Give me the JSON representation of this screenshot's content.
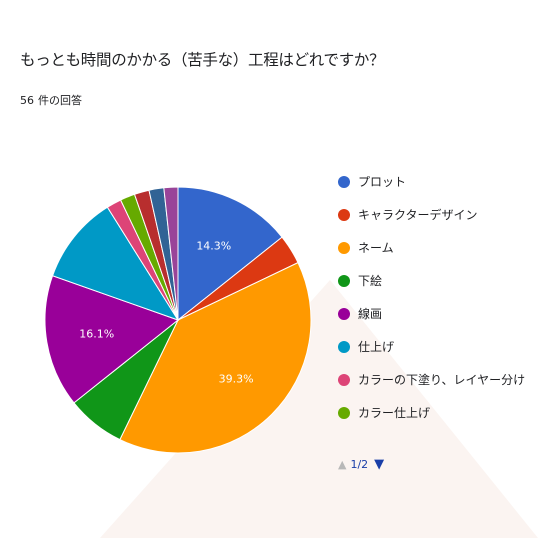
{
  "header": {
    "title": "もっとも時間のかかる（苦手な）工程はどれですか？",
    "response_count": "56",
    "response_suffix": "件の回答"
  },
  "legend_pager": {
    "page": "1/2",
    "prev_icon": "triangle-up-icon",
    "next_icon": "triangle-down-icon"
  },
  "chart_data": {
    "type": "pie",
    "title": "もっとも時間のかかる（苦手な）工程はどれですか？",
    "total": 56,
    "start_angle_deg": 90,
    "direction": "clockwise",
    "slices": [
      {
        "label": "プロット",
        "value": 14.3,
        "display_label": "14.3%",
        "color": "#3366cc"
      },
      {
        "label": "キャラクターデザイン",
        "value": 3.6,
        "display_label": "",
        "color": "#dc3912"
      },
      {
        "label": "ネーム",
        "value": 39.3,
        "display_label": "39.3%",
        "color": "#ff9900"
      },
      {
        "label": "下絵",
        "value": 7.1,
        "display_label": "",
        "color": "#109618"
      },
      {
        "label": "線画",
        "value": 16.1,
        "display_label": "16.1%",
        "color": "#990099"
      },
      {
        "label": "仕上げ",
        "value": 10.7,
        "display_label": "",
        "color": "#0099c6"
      },
      {
        "label": "カラーの下塗り、レイヤー分け",
        "value": 1.8,
        "display_label": "",
        "color": "#dd4477"
      },
      {
        "label": "カラー仕上げ",
        "value": 1.8,
        "display_label": "",
        "color": "#66aa00"
      },
      {
        "label": "",
        "value": 1.8,
        "display_label": "",
        "color": "#b82e2e"
      },
      {
        "label": "",
        "value": 1.8,
        "display_label": "",
        "color": "#316395"
      },
      {
        "label": "",
        "value": 1.7,
        "display_label": "",
        "color": "#994499"
      }
    ],
    "legend_position": "right"
  }
}
